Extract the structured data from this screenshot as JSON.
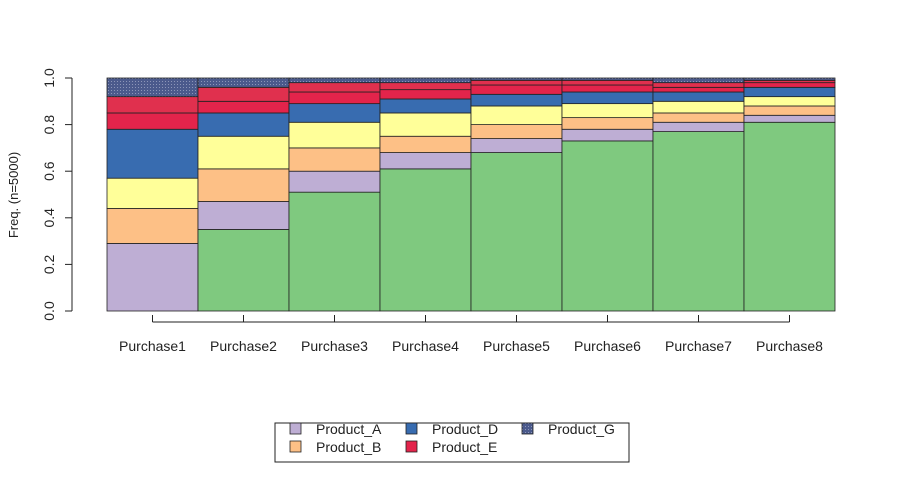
{
  "chart_data": {
    "type": "bar",
    "stacked": true,
    "categories": [
      "Purchase1",
      "Purchase2",
      "Purchase3",
      "Purchase4",
      "Purchase5",
      "Purchase6",
      "Purchase7",
      "Purchase8"
    ],
    "ylabel": "Freq. (n=5000)",
    "xlabel": "",
    "ylim": [
      0,
      1
    ],
    "yticks": [
      "0.0",
      "0.2",
      "0.4",
      "0.6",
      "0.8",
      "1.0"
    ],
    "grid": false,
    "legend_position": "bottom",
    "legend_columns": [
      [
        "Product_A",
        "Product_B"
      ],
      [
        "Product_D",
        "Product_E"
      ],
      [
        "Product_G"
      ]
    ],
    "series": [
      {
        "color": "#7fc97f",
        "values": [
          0.0,
          0.35,
          0.51,
          0.61,
          0.68,
          0.73,
          0.77,
          0.81
        ]
      },
      {
        "name": "Product_A",
        "color": "#beaed4",
        "values": [
          0.29,
          0.12,
          0.09,
          0.07,
          0.06,
          0.05,
          0.04,
          0.03
        ]
      },
      {
        "name": "Product_B",
        "color": "#fdc086",
        "values": [
          0.15,
          0.14,
          0.1,
          0.07,
          0.06,
          0.05,
          0.04,
          0.04
        ]
      },
      {
        "color": "#ffff99",
        "values": [
          0.13,
          0.14,
          0.11,
          0.1,
          0.08,
          0.06,
          0.05,
          0.04
        ]
      },
      {
        "name": "Product_D",
        "color": "#386cb0",
        "values": [
          0.21,
          0.1,
          0.08,
          0.06,
          0.05,
          0.05,
          0.04,
          0.04
        ]
      },
      {
        "name": "Product_E",
        "color": "#e3244b",
        "values": [
          0.07,
          0.05,
          0.05,
          0.04,
          0.04,
          0.03,
          0.02,
          0.02
        ]
      },
      {
        "color": "#e0304e",
        "values": [
          0.07,
          0.06,
          0.04,
          0.03,
          0.02,
          0.02,
          0.02,
          0.01
        ]
      },
      {
        "name": "Product_G",
        "color": "#4b5a8c",
        "values": [
          0.08,
          0.04,
          0.02,
          0.02,
          0.01,
          0.01,
          0.02,
          0.01
        ]
      }
    ]
  }
}
